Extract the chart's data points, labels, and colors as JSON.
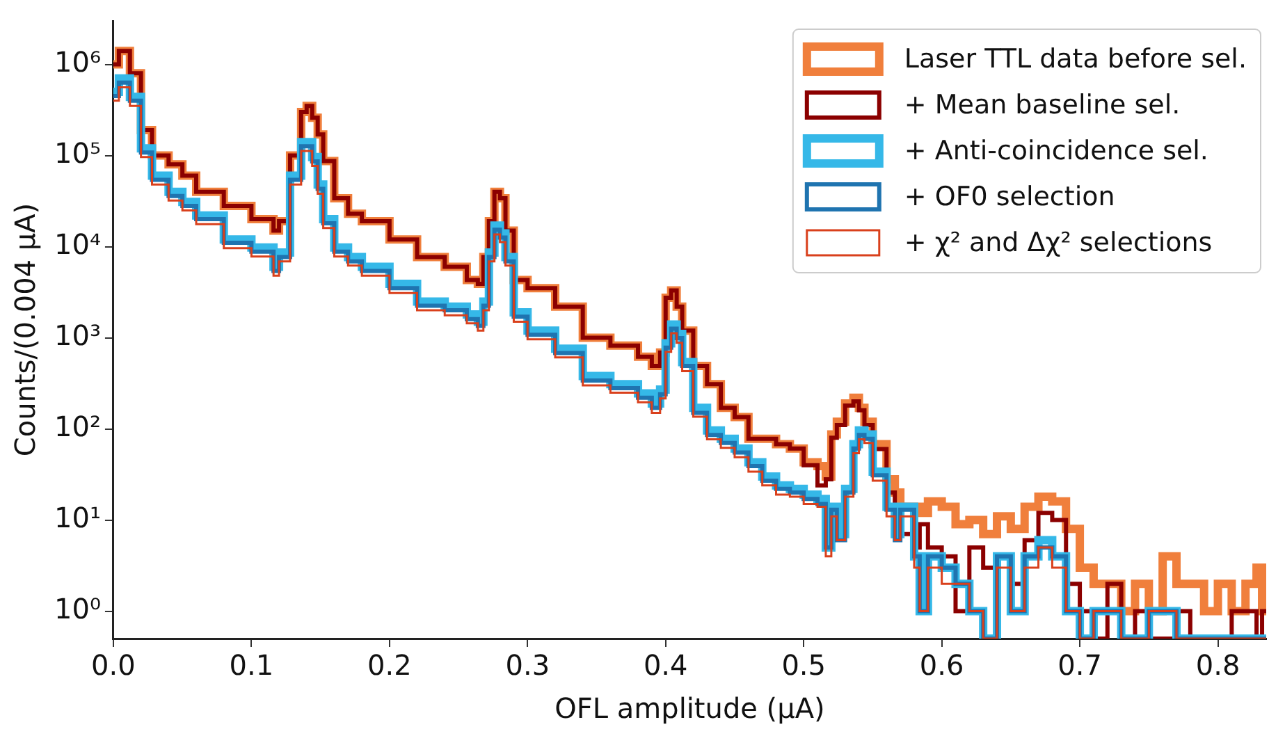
{
  "chart_data": {
    "type": "histogram",
    "xlabel": "OFL amplitude (µA)",
    "ylabel": "Counts/(0.004 µA)",
    "log": "y",
    "legend": "top right",
    "grid": false,
    "xlim": [
      0,
      0.835
    ],
    "xticks": [
      {
        "value": 0,
        "label": "0.0"
      },
      0.1,
      0.2,
      0.3,
      0.4,
      0.5,
      0.6,
      0.7,
      0.8
    ],
    "ylim": [
      0.5,
      3000000
    ],
    "yticks": [
      {
        "value": 1,
        "label": "10⁰"
      },
      {
        "value": 10,
        "label": "10¹"
      },
      {
        "value": 100,
        "label": "10²"
      },
      {
        "value": 1000,
        "label": "10³"
      },
      {
        "value": 10000,
        "label": "10⁴"
      },
      {
        "value": 100000,
        "label": "10⁵"
      },
      {
        "value": 1000000,
        "label": "10⁶"
      }
    ],
    "bins": [
      0,
      0.004,
      0.012,
      0.02,
      0.028,
      0.04,
      0.05,
      0.06,
      0.08,
      0.1,
      0.116,
      0.12,
      0.128,
      0.136,
      0.14,
      0.144,
      0.148,
      0.152,
      0.16,
      0.17,
      0.18,
      0.2,
      0.22,
      0.24,
      0.256,
      0.264,
      0.268,
      0.272,
      0.276,
      0.28,
      0.284,
      0.29,
      0.3,
      0.32,
      0.34,
      0.36,
      0.38,
      0.39,
      0.396,
      0.4,
      0.404,
      0.408,
      0.412,
      0.42,
      0.43,
      0.44,
      0.45,
      0.46,
      0.47,
      0.48,
      0.49,
      0.5,
      0.51,
      0.516,
      0.52,
      0.524,
      0.53,
      0.536,
      0.54,
      0.544,
      0.55,
      0.56,
      0.566,
      0.57,
      0.58,
      0.584,
      0.59,
      0.6,
      0.61,
      0.62,
      0.63,
      0.64,
      0.65,
      0.66,
      0.67,
      0.68,
      0.69,
      0.7,
      0.71,
      0.72,
      0.73,
      0.74,
      0.75,
      0.76,
      0.77,
      0.78,
      0.79,
      0.8,
      0.81,
      0.82,
      0.828,
      0.832,
      0.835
    ],
    "series": [
      {
        "name": "Laser TTL data before sel.",
        "color": "#f07f3c",
        "values": [
          1000000,
          1400000,
          800000,
          190000,
          100000,
          80000,
          60000,
          40000,
          28000,
          20000,
          15000,
          19000,
          100000,
          300000,
          350000,
          260000,
          170000,
          87000,
          34000,
          23000,
          19000,
          12000,
          7700,
          6000,
          4300,
          3900,
          7700,
          19000,
          40000,
          34000,
          15000,
          4300,
          3500,
          2200,
          1000,
          820,
          620,
          490,
          690,
          2750,
          3300,
          2200,
          1200,
          490,
          310,
          170,
          135,
          78,
          78,
          68,
          61,
          43,
          39,
          30,
          87,
          120,
          190,
          220,
          170,
          120,
          68,
          28,
          20,
          14,
          14,
          12,
          16,
          14,
          9,
          10,
          7,
          11,
          8,
          14,
          18,
          16,
          8,
          3,
          2,
          2,
          1,
          2,
          1,
          4,
          2,
          2,
          1,
          2,
          1,
          2,
          3,
          1
        ]
      },
      {
        "name": "+ Mean baseline sel.",
        "color": "#8b0000",
        "values": [
          1000000,
          1400000,
          800000,
          190000,
          100000,
          80000,
          60000,
          40000,
          28000,
          20000,
          15000,
          19000,
          100000,
          300000,
          350000,
          260000,
          170000,
          87000,
          34000,
          23000,
          19000,
          12000,
          7700,
          6000,
          4300,
          3900,
          7700,
          19000,
          40000,
          34000,
          15000,
          4300,
          3500,
          2200,
          1000,
          820,
          620,
          490,
          690,
          2750,
          3300,
          2200,
          1200,
          490,
          310,
          170,
          135,
          78,
          78,
          68,
          61,
          40,
          24,
          28,
          80,
          110,
          180,
          200,
          160,
          110,
          60,
          20,
          12,
          7,
          5,
          9,
          5,
          4,
          1,
          5,
          3,
          4,
          2,
          6,
          12,
          10,
          2,
          1,
          null,
          2,
          null,
          1,
          null,
          null,
          1,
          null,
          null,
          null,
          1,
          1,
          null,
          1
        ]
      },
      {
        "name": "+ Anti-coincidence sel.",
        "color": "#35b8e8",
        "values": [
          500000,
          700000,
          440000,
          120000,
          60000,
          40000,
          31000,
          22000,
          12000,
          9800,
          6000,
          8600,
          60000,
          140000,
          140000,
          96000,
          48000,
          20000,
          9800,
          7700,
          6000,
          3900,
          2500,
          2200,
          1800,
          1500,
          2500,
          8600,
          17000,
          14000,
          7700,
          1900,
          1200,
          760,
          380,
          310,
          245,
          190,
          270,
          870,
          1400,
          1100,
          540,
          170,
          96,
          78,
          61,
          43,
          30,
          24,
          22,
          19,
          17,
          5,
          14,
          7,
          22,
          68,
          96,
          87,
          34,
          14,
          7,
          14,
          4,
          1,
          4,
          3,
          2,
          1,
          null,
          4,
          1,
          4,
          6,
          4,
          1,
          null,
          1,
          1,
          null,
          null,
          1,
          1,
          null,
          null,
          null,
          null,
          null,
          null,
          null,
          null
        ]
      },
      {
        "name": "+ OF0 selection",
        "color": "#1f74b0",
        "values": [
          450000,
          630000,
          400000,
          108000,
          54000,
          36000,
          28000,
          20000,
          11000,
          8800,
          5400,
          7700,
          54000,
          126000,
          126000,
          86000,
          43000,
          18000,
          8800,
          6900,
          5400,
          3500,
          2250,
          2000,
          1600,
          1350,
          2250,
          7700,
          15300,
          12600,
          6900,
          1700,
          1080,
          680,
          340,
          280,
          220,
          170,
          240,
          780,
          1260,
          990,
          490,
          150,
          86,
          70,
          55,
          39,
          27,
          22,
          20,
          17,
          15,
          5,
          13,
          6,
          20,
          61,
          86,
          78,
          31,
          13,
          6,
          13,
          4,
          1,
          4,
          3,
          2,
          1,
          null,
          4,
          1,
          4,
          5,
          4,
          1,
          null,
          1,
          1,
          null,
          null,
          1,
          1,
          null,
          null,
          null,
          null,
          null,
          null,
          null,
          null
        ]
      },
      {
        "name": "+ χ² and Δχ² selections",
        "color": "#d9401c",
        "values": [
          400000,
          560000,
          350000,
          96000,
          48000,
          32000,
          25000,
          17600,
          9600,
          7800,
          4800,
          6900,
          48000,
          112000,
          112000,
          77000,
          38000,
          16000,
          7800,
          6200,
          4800,
          3100,
          2000,
          1760,
          1440,
          1200,
          2000,
          6900,
          13600,
          11200,
          6200,
          1500,
          960,
          610,
          300,
          250,
          196,
          150,
          216,
          700,
          1120,
          880,
          430,
          136,
          77,
          62,
          49,
          34,
          24,
          19,
          18,
          15,
          14,
          4,
          11,
          6,
          18,
          54,
          77,
          70,
          27,
          11,
          6,
          11,
          3,
          1,
          3,
          2,
          2,
          1,
          null,
          3,
          1,
          3,
          5,
          3,
          1,
          null,
          1,
          1,
          null,
          null,
          1,
          1,
          null,
          null,
          null,
          null,
          null,
          null,
          null,
          null
        ]
      }
    ]
  }
}
